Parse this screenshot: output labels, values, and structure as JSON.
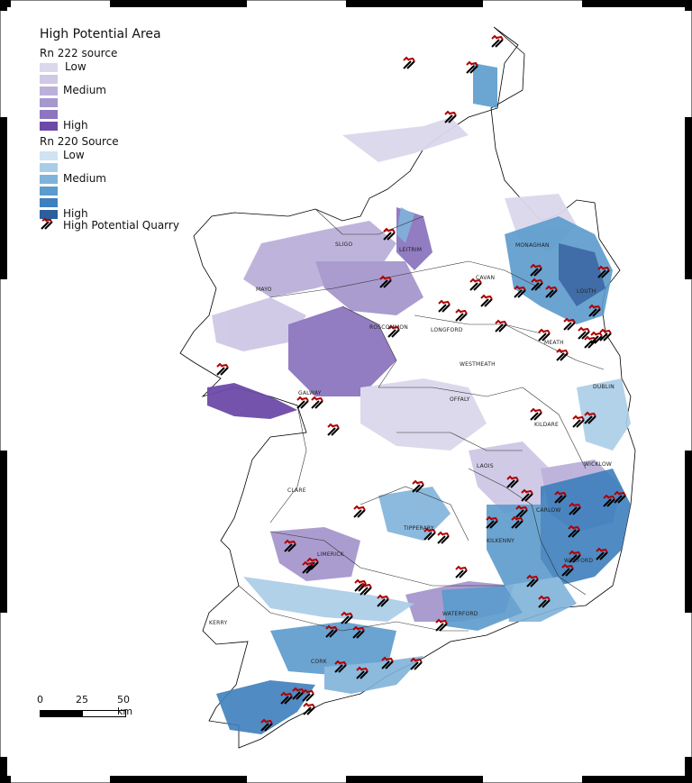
{
  "legend": {
    "title": "High Potential Area",
    "rn222": {
      "title": "Rn 222 source",
      "classes": [
        {
          "label": "Low",
          "color": "#dcd8ec"
        },
        {
          "label": "",
          "color": "#cfc8e6"
        },
        {
          "label": "Medium",
          "color": "#bbb0da"
        },
        {
          "label": "",
          "color": "#a697cd"
        },
        {
          "label": "",
          "color": "#8d75bf"
        },
        {
          "label": "High",
          "color": "#6c4aa8"
        }
      ]
    },
    "rn220": {
      "title": "Rn 220 Source",
      "classes": [
        {
          "label": "Low",
          "color": "#cfe3f2"
        },
        {
          "label": "",
          "color": "#a9cde7"
        },
        {
          "label": "Medium",
          "color": "#7fb3da"
        },
        {
          "label": "",
          "color": "#5b9bcd"
        },
        {
          "label": "",
          "color": "#3e7fbd"
        },
        {
          "label": "High",
          "color": "#2c5e9e"
        }
      ]
    },
    "quarry": {
      "label": "High Potential Quarry",
      "icon": "hammer-pick-icon"
    }
  },
  "counties": [
    "SLIGO",
    "LEITRIM",
    "MONAGHAN",
    "MAYO",
    "CAVAN",
    "LOUTH",
    "ROSCOMMON",
    "LONGFORD",
    "MEATH",
    "WESTMEATH",
    "DUBLIN",
    "GALWAY",
    "OFFALY",
    "KILDARE",
    "LAOIS",
    "WICKLOW",
    "CLARE",
    "CARLOW",
    "TIPPERARY",
    "KILKENNY",
    "LIMERICK",
    "WEXFORD",
    "WATERFORD",
    "KERRY",
    "CORK"
  ],
  "scale": {
    "labels": [
      "0",
      "25",
      "50 km"
    ]
  }
}
